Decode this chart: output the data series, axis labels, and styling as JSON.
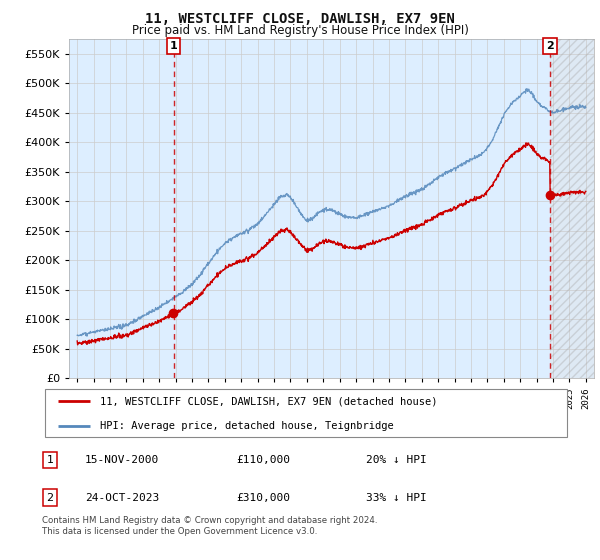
{
  "title": "11, WESTCLIFF CLOSE, DAWLISH, EX7 9EN",
  "subtitle": "Price paid vs. HM Land Registry's House Price Index (HPI)",
  "legend_line1": "11, WESTCLIFF CLOSE, DAWLISH, EX7 9EN (detached house)",
  "legend_line2": "HPI: Average price, detached house, Teignbridge",
  "annotation1": {
    "num": "1",
    "date": "15-NOV-2000",
    "price": "£110,000",
    "note": "20% ↓ HPI"
  },
  "annotation2": {
    "num": "2",
    "date": "24-OCT-2023",
    "price": "£310,000",
    "note": "33% ↓ HPI"
  },
  "footnote": "Contains HM Land Registry data © Crown copyright and database right 2024.\nThis data is licensed under the Open Government Licence v3.0.",
  "red_line_color": "#cc0000",
  "blue_line_color": "#5588bb",
  "bg_fill_color": "#ddeeff",
  "marker1_date_num": 2000.88,
  "marker2_date_num": 2023.82,
  "sale1_price": 110000,
  "sale2_price": 310000,
  "ylim": [
    0,
    575000
  ],
  "yticks": [
    0,
    50000,
    100000,
    150000,
    200000,
    250000,
    300000,
    350000,
    400000,
    450000,
    500000,
    550000
  ],
  "xmin": 1994.5,
  "xmax": 2026.5,
  "background_color": "#ffffff",
  "grid_color": "#cccccc"
}
